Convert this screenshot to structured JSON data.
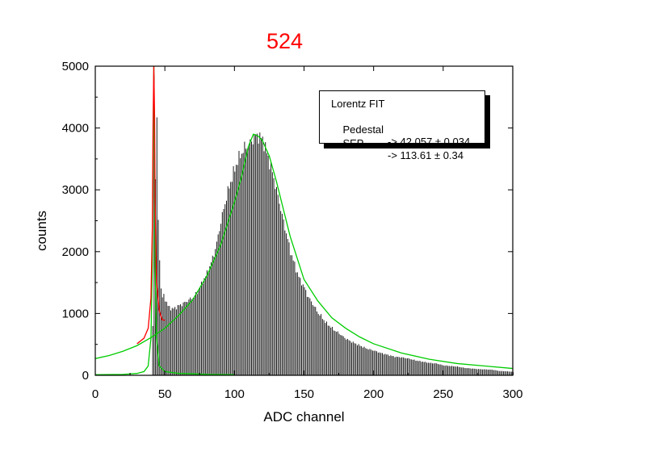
{
  "chart_data": {
    "type": "bar",
    "title": "524",
    "xlabel": "ADC channel",
    "ylabel": "counts",
    "xlim": [
      0,
      300
    ],
    "ylim": [
      0,
      5000
    ],
    "xticks": [
      0,
      50,
      100,
      150,
      200,
      250,
      300
    ],
    "yticks": [
      0,
      1000,
      2000,
      3000,
      4000,
      5000
    ],
    "title_color": "#ff0000",
    "histogram": {
      "name": "counts",
      "bin_width": 1,
      "x": [
        40,
        41,
        42,
        43,
        44,
        45,
        46,
        47,
        48,
        49,
        50,
        52,
        55,
        57,
        60,
        62,
        65,
        67,
        70,
        72,
        75,
        77,
        80,
        82,
        85,
        87,
        90,
        92,
        95,
        97,
        100,
        102,
        105,
        107,
        110,
        112,
        114,
        116,
        118,
        120,
        122,
        125,
        127,
        130,
        132,
        135,
        137,
        140,
        142,
        145,
        147,
        150,
        152,
        155,
        157,
        160,
        162,
        165,
        167,
        170,
        172,
        175,
        177,
        180,
        185,
        190,
        195,
        200,
        205,
        210,
        215,
        220,
        225,
        230,
        235,
        240,
        245,
        250,
        255,
        260,
        265,
        270,
        275,
        280,
        285,
        290,
        295,
        300
      ],
      "y": [
        0,
        800,
        4900,
        3200,
        4100,
        2500,
        1900,
        1400,
        1250,
        1300,
        1230,
        1120,
        1070,
        1090,
        1130,
        1150,
        1190,
        1220,
        1260,
        1310,
        1420,
        1520,
        1650,
        1760,
        1960,
        2140,
        2480,
        2690,
        2970,
        3130,
        3340,
        3470,
        3600,
        3680,
        3720,
        3780,
        3860,
        3880,
        3850,
        3820,
        3680,
        3440,
        3280,
        2990,
        2800,
        2480,
        2300,
        2000,
        1860,
        1650,
        1540,
        1420,
        1300,
        1190,
        1120,
        1000,
        960,
        860,
        820,
        760,
        720,
        680,
        640,
        590,
        530,
        480,
        430,
        400,
        360,
        330,
        300,
        290,
        270,
        240,
        220,
        200,
        190,
        160,
        150,
        140,
        120,
        110,
        100,
        95,
        90,
        70,
        65,
        55
      ]
    },
    "fit_curves": [
      {
        "name": "Lorentz fit",
        "color": "#00cc00",
        "x": [
          0,
          10,
          20,
          30,
          40,
          50,
          60,
          70,
          80,
          90,
          100,
          105,
          110,
          113.61,
          117,
          120,
          125,
          130,
          135,
          140,
          145,
          150,
          160,
          170,
          180,
          190,
          200,
          220,
          240,
          260,
          280,
          300
        ],
        "y": [
          270,
          320,
          390,
          480,
          610,
          760,
          970,
          1220,
          1600,
          2100,
          2800,
          3200,
          3700,
          3900,
          3870,
          3800,
          3550,
          3150,
          2700,
          2250,
          1900,
          1550,
          1200,
          930,
          760,
          620,
          510,
          360,
          260,
          190,
          150,
          110
        ]
      },
      {
        "name": "Pedestal fit",
        "color": "#00cc00",
        "x": [
          0,
          20,
          30,
          35,
          38,
          40,
          41,
          41.5,
          42.057,
          42.6,
          43,
          44,
          46,
          50,
          60,
          80,
          100
        ],
        "y": [
          10,
          15,
          30,
          60,
          150,
          600,
          1800,
          3500,
          5000,
          3500,
          1800,
          600,
          150,
          60,
          30,
          15,
          10
        ]
      },
      {
        "name": "Sum",
        "color": "#ff0000",
        "x": [
          30,
          35,
          38,
          40,
          41,
          41.5,
          42.057,
          42.6,
          43,
          44,
          46,
          48,
          50
        ],
        "y": [
          510,
          600,
          760,
          1250,
          2400,
          4000,
          5000,
          4200,
          2800,
          1500,
          1050,
          900,
          890
        ]
      }
    ],
    "legend": {
      "title": "Lorentz FIT",
      "entries": [
        {
          "label": "Pedestal",
          "value": "-> 42.057 ± 0.034"
        },
        {
          "label": "SEP",
          "value": "-> 113.61 ± 0.34"
        }
      ],
      "position": "top-right"
    }
  }
}
